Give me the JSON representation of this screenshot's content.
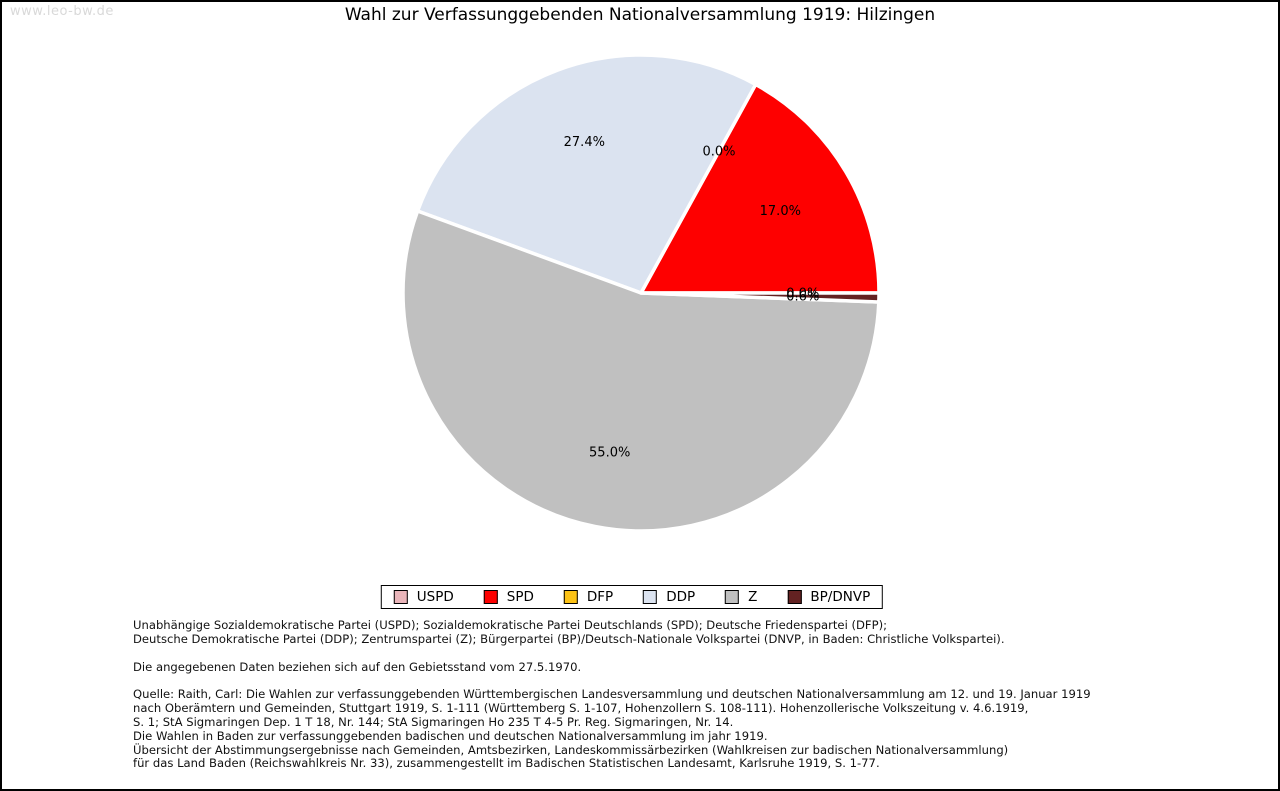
{
  "watermark": "www.leo-bw.de",
  "chart_data": {
    "type": "pie",
    "title": "Wahl zur Verfassunggebenden Nationalversammlung 1919: Hilzingen",
    "unit": "percent",
    "direction": "counterclockwise",
    "start_angle_deg": 0,
    "legend_position": "bottom",
    "series": [
      {
        "label": "USPD",
        "value": 0.0,
        "display": "0.0%",
        "color": "#eab5ba"
      },
      {
        "label": "SPD",
        "value": 17.0,
        "display": "17.0%",
        "color": "#fe0000"
      },
      {
        "label": "DFP",
        "value": 0.0,
        "display": "0.0%",
        "color": "#fdc315"
      },
      {
        "label": "DDP",
        "value": 27.4,
        "display": "27.4%",
        "color": "#dbe3f0"
      },
      {
        "label": "Z",
        "value": 55.0,
        "display": "55.0%",
        "color": "#c0c0c0"
      },
      {
        "label": "BP/DNVP",
        "value": 0.6,
        "display": "0.6%",
        "color": "#632222"
      }
    ]
  },
  "footnotes": {
    "paragraphs": [
      {
        "lines": [
          "Unabhängige Sozialdemokratische Partei (USPD); Sozialdemokratische Partei Deutschlands (SPD); Deutsche Friedenspartei (DFP);",
          "Deutsche Demokratische Partei (DDP); Zentrumspartei (Z); Bürgerpartei (BP)/Deutsch-Nationale Volkspartei (DNVP, in Baden: Christliche Volkspartei)."
        ]
      },
      {
        "lines": [
          "Die angegebenen Daten beziehen sich auf den Gebietsstand vom 27.5.1970."
        ]
      },
      {
        "lines": [
          "Quelle: Raith, Carl: Die Wahlen zur verfassunggebenden Württembergischen Landesversammlung und deutschen Nationalversammlung am 12. und 19. Januar 1919",
          "nach Oberämtern und Gemeinden, Stuttgart 1919, S. 1-111 (Württemberg S. 1-107, Hohenzollern S. 108-111). Hohenzollerische Volkszeitung v. 4.6.1919,",
          "S. 1; StA Sigmaringen Dep. 1 T 18, Nr. 144; StA Sigmaringen Ho 235 T 4-5 Pr. Reg. Sigmaringen, Nr. 14.",
          "Die Wahlen in Baden zur verfassunggebenden badischen und deutschen Nationalversammlung im jahr 1919.",
          "Übersicht der Abstimmungsergebnisse nach Gemeinden, Amtsbezirken, Landeskommissärbezirken (Wahlkreisen zur badischen Nationalversammlung)",
          "für das Land Baden (Reichswahlkreis Nr. 33), zusammengestellt im Badischen Statistischen Landesamt, Karlsruhe 1919, S. 1-77."
        ]
      }
    ]
  },
  "style": {
    "slice_gap_color": "#ffffff",
    "text_color": "#000000",
    "watermark_color": "#d9d9d9"
  }
}
